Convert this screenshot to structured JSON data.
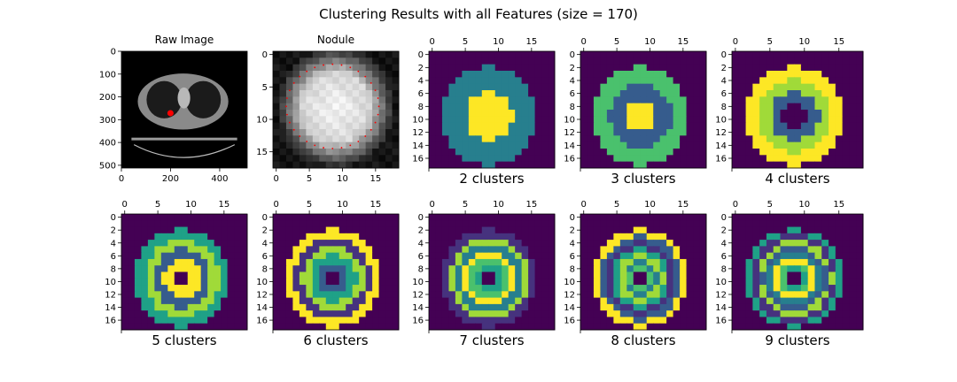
{
  "figure": {
    "title": "Clustering Results with all Features (size = 170)"
  },
  "colors": {
    "viridis": [
      "#440154",
      "#46327e",
      "#365c8d",
      "#277f8e",
      "#1fa187",
      "#4ac16d",
      "#a0da39",
      "#fde725"
    ],
    "ct_body": "#8a8a8a",
    "ct_lung": "#1b1b1b",
    "nodule_marker": "#ff0000"
  },
  "chart_data": [
    {
      "type": "heatmap",
      "title": "Raw Image",
      "image": "grayscale CT slice",
      "x_ticks": [
        "0",
        "200",
        "400"
      ],
      "y_ticks": [
        "0",
        "100",
        "200",
        "300",
        "400",
        "500"
      ],
      "xlim": [
        0,
        512
      ],
      "ylim": [
        0,
        512
      ],
      "tick_position": "bottom"
    },
    {
      "type": "heatmap",
      "title": "Nodule",
      "image": "grayscale nodule crop",
      "x_ticks": [
        "0",
        "5",
        "10",
        "15"
      ],
      "y_ticks": [
        "0",
        "5",
        "10",
        "15"
      ],
      "xlim": [
        0,
        19
      ],
      "ylim": [
        0,
        18
      ],
      "tick_position": "bottom"
    },
    {
      "type": "heatmap",
      "xlabel": "2 clusters",
      "clusters": 2,
      "tick_position": "top",
      "x_ticks": [
        "0",
        "5",
        "10",
        "15"
      ],
      "y_ticks": [
        "0",
        "2",
        "4",
        "6",
        "8",
        "10",
        "12",
        "14",
        "16"
      ]
    },
    {
      "type": "heatmap",
      "xlabel": "3 clusters",
      "clusters": 3,
      "tick_position": "top",
      "x_ticks": [
        "0",
        "5",
        "10",
        "15"
      ],
      "y_ticks": [
        "0",
        "2",
        "4",
        "6",
        "8",
        "10",
        "12",
        "14",
        "16"
      ]
    },
    {
      "type": "heatmap",
      "xlabel": "4 clusters",
      "clusters": 4,
      "tick_position": "top",
      "x_ticks": [
        "0",
        "5",
        "10",
        "15"
      ],
      "y_ticks": [
        "0",
        "2",
        "4",
        "6",
        "8",
        "10",
        "12",
        "14",
        "16"
      ]
    },
    {
      "type": "heatmap",
      "xlabel": "5 clusters",
      "clusters": 5,
      "tick_position": "top",
      "x_ticks": [
        "0",
        "5",
        "10",
        "15"
      ],
      "y_ticks": [
        "0",
        "2",
        "4",
        "6",
        "8",
        "10",
        "12",
        "14",
        "16"
      ]
    },
    {
      "type": "heatmap",
      "xlabel": "6 clusters",
      "clusters": 6,
      "tick_position": "top",
      "x_ticks": [
        "0",
        "5",
        "10",
        "15"
      ],
      "y_ticks": [
        "0",
        "2",
        "4",
        "6",
        "8",
        "10",
        "12",
        "14",
        "16"
      ]
    },
    {
      "type": "heatmap",
      "xlabel": "7 clusters",
      "clusters": 7,
      "tick_position": "top",
      "x_ticks": [
        "0",
        "5",
        "10",
        "15"
      ],
      "y_ticks": [
        "0",
        "2",
        "4",
        "6",
        "8",
        "10",
        "12",
        "14",
        "16"
      ]
    },
    {
      "type": "heatmap",
      "xlabel": "8 clusters",
      "clusters": 8,
      "tick_position": "top",
      "x_ticks": [
        "0",
        "5",
        "10",
        "15"
      ],
      "y_ticks": [
        "0",
        "2",
        "4",
        "6",
        "8",
        "10",
        "12",
        "14",
        "16"
      ]
    },
    {
      "type": "heatmap",
      "xlabel": "9 clusters",
      "clusters": 9,
      "tick_position": "top",
      "x_ticks": [
        "0",
        "5",
        "10",
        "15"
      ],
      "y_ticks": [
        "0",
        "2",
        "4",
        "6",
        "8",
        "10",
        "12",
        "14",
        "16"
      ]
    }
  ]
}
